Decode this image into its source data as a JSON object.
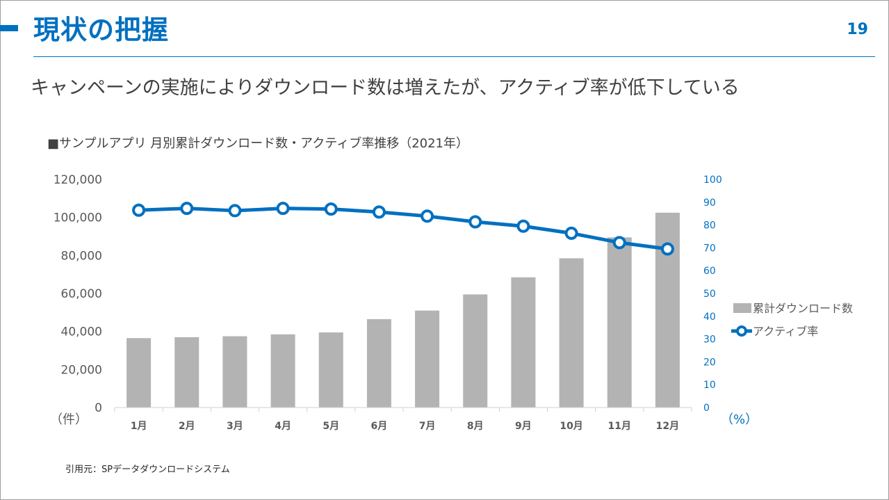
{
  "header": {
    "title": "現状の把握",
    "page_number": "19",
    "subtitle": "キャンペーンの実施によりダウンロード数は増えたが、アクティブ率が低下している"
  },
  "chart_heading": "■サンプルアプリ 月別累計ダウンロード数・アクティブ率推移（2021年）",
  "source": "引用元：SPデータダウンロードシステム",
  "colors": {
    "accent": "#0070c0",
    "bar": "#b3b3b3",
    "line": "#0070c0"
  },
  "chart_data": {
    "type": "bar",
    "categories": [
      "1月",
      "2月",
      "3月",
      "4月",
      "5月",
      "6月",
      "7月",
      "8月",
      "9月",
      "10月",
      "11月",
      "12月"
    ],
    "series": [
      {
        "name": "累計ダウンロード数",
        "type": "bar",
        "axis": "left",
        "values": [
          36500,
          37000,
          37500,
          38500,
          39500,
          46500,
          51000,
          59500,
          68500,
          78500,
          89500,
          102500
        ]
      },
      {
        "name": "アクティブ率",
        "type": "line",
        "axis": "right",
        "values": [
          86.5,
          87.3,
          86.3,
          87.3,
          87.0,
          85.7,
          83.9,
          81.4,
          79.5,
          76.4,
          72.3,
          69.5
        ]
      }
    ],
    "y_left": {
      "min": 0,
      "max": 120000,
      "step": 20000,
      "ticks": [
        "0",
        "20,000",
        "40,000",
        "60,000",
        "80,000",
        "100,000",
        "120,000"
      ],
      "unit": "（件）"
    },
    "y_right": {
      "min": 0,
      "max": 100,
      "step": 10,
      "ticks": [
        "0",
        "10",
        "20",
        "30",
        "40",
        "50",
        "60",
        "70",
        "80",
        "90",
        "100"
      ],
      "unit": "（%）"
    },
    "legend_position": "right",
    "grid": false
  }
}
